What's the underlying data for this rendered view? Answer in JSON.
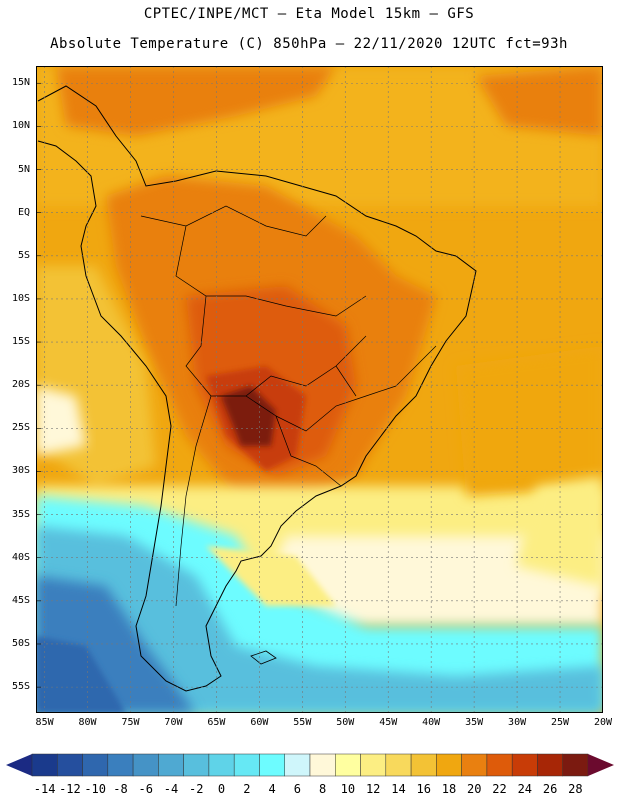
{
  "header": {
    "line1": "CPTEC/INPE/MCT –  Eta Model 15km – GFS",
    "line2": "Absolute Temperature (C) 850hPa – 22/11/2020 12UTC fct=93h"
  },
  "axes": {
    "lat_labels": [
      "15N",
      "10N",
      "5N",
      "EQ",
      "5S",
      "10S",
      "15S",
      "20S",
      "25S",
      "30S",
      "35S",
      "40S",
      "45S",
      "50S",
      "55S"
    ],
    "lon_labels": [
      "85W",
      "80W",
      "75W",
      "70W",
      "65W",
      "60W",
      "55W",
      "50W",
      "45W",
      "40W",
      "35W",
      "30W",
      "25W",
      "20W"
    ],
    "lat_range": [
      17,
      -58
    ],
    "lon_range": [
      -86,
      -20
    ]
  },
  "colorbar": {
    "labels": [
      "-14",
      "-12",
      "-10",
      "-8",
      "-6",
      "-4",
      "-2",
      "0",
      "2",
      "4",
      "6",
      "8",
      "10",
      "12",
      "14",
      "16",
      "18",
      "20",
      "22",
      "24",
      "26",
      "28"
    ],
    "colors": [
      "#1a3a8c",
      "#254f9e",
      "#2f67ae",
      "#3a7fbe",
      "#4593c6",
      "#4fa9d2",
      "#58bfdd",
      "#5fd3e8",
      "#66e8f4",
      "#6dfcff",
      "#cff6fb",
      "#fff8d9",
      "#ffffa0",
      "#fcee83",
      "#f8d95c",
      "#f3c235",
      "#f0a710",
      "#e98010",
      "#de5b0a",
      "#c83c07",
      "#a72606",
      "#7b1a10"
    ],
    "under_color": "#1b2a83",
    "over_color": "#6b0a2e"
  }
}
